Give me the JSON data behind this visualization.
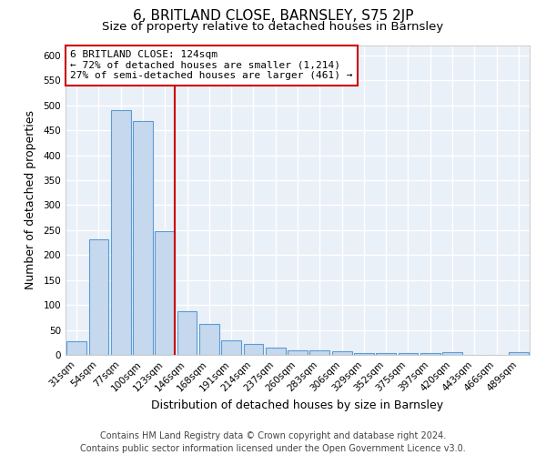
{
  "title": "6, BRITLAND CLOSE, BARNSLEY, S75 2JP",
  "subtitle": "Size of property relative to detached houses in Barnsley",
  "xlabel": "Distribution of detached houses by size in Barnsley",
  "ylabel": "Number of detached properties",
  "footer_line1": "Contains HM Land Registry data © Crown copyright and database right 2024.",
  "footer_line2": "Contains public sector information licensed under the Open Government Licence v3.0.",
  "bar_labels": [
    "31sqm",
    "54sqm",
    "77sqm",
    "100sqm",
    "123sqm",
    "146sqm",
    "168sqm",
    "191sqm",
    "214sqm",
    "237sqm",
    "260sqm",
    "283sqm",
    "306sqm",
    "329sqm",
    "352sqm",
    "375sqm",
    "397sqm",
    "420sqm",
    "443sqm",
    "466sqm",
    "489sqm"
  ],
  "bar_values": [
    28,
    232,
    490,
    468,
    248,
    88,
    62,
    30,
    22,
    14,
    10,
    10,
    8,
    4,
    3,
    3,
    3,
    5,
    0,
    0,
    5
  ],
  "bar_color": "#c5d8ed",
  "bar_edge_color": "#5b9bd5",
  "bar_edge_width": 0.8,
  "vline_x_index": 4,
  "vline_color": "#cc0000",
  "annotation_title": "6 BRITLAND CLOSE: 124sqm",
  "annotation_line1": "← 72% of detached houses are smaller (1,214)",
  "annotation_line2": "27% of semi-detached houses are larger (461) →",
  "annotation_box_color": "#ffffff",
  "annotation_box_edge": "#cc0000",
  "bg_color": "#ffffff",
  "plot_bg_color": "#eaf0f8",
  "ylim": [
    0,
    620
  ],
  "yticks": [
    0,
    50,
    100,
    150,
    200,
    250,
    300,
    350,
    400,
    450,
    500,
    550,
    600
  ],
  "grid_color": "#ffffff",
  "title_fontsize": 11,
  "subtitle_fontsize": 9.5,
  "axis_label_fontsize": 9,
  "tick_fontsize": 7.5,
  "annotation_fontsize": 8,
  "footer_fontsize": 7
}
